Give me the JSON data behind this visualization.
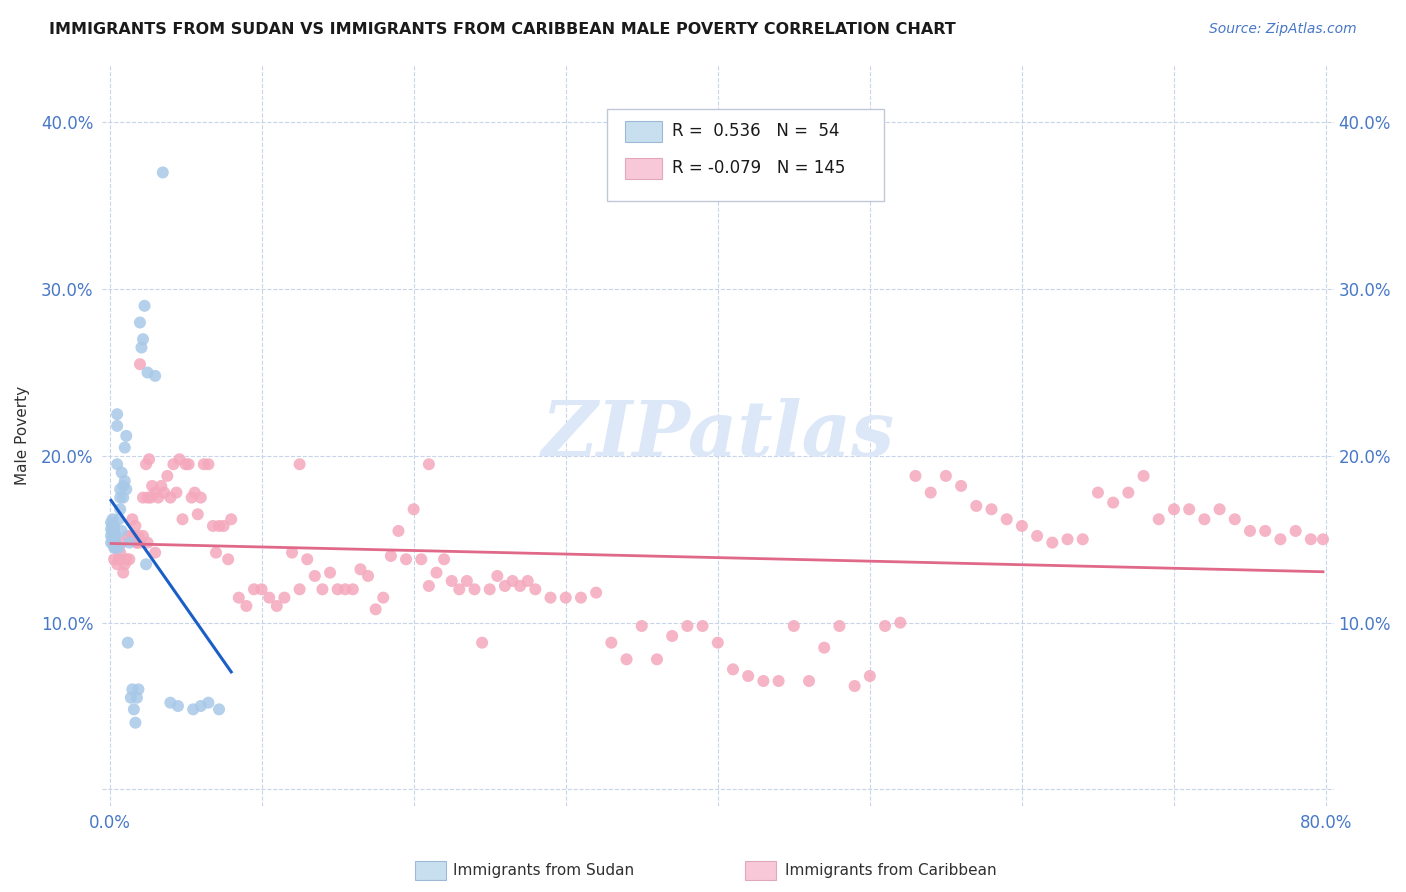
{
  "title": "IMMIGRANTS FROM SUDAN VS IMMIGRANTS FROM CARIBBEAN MALE POVERTY CORRELATION CHART",
  "source": "Source: ZipAtlas.com",
  "ylabel": "Male Poverty",
  "xlim": [
    -0.005,
    0.805
  ],
  "ylim": [
    -0.01,
    0.435
  ],
  "r_sudan": 0.536,
  "n_sudan": 54,
  "r_caribbean": -0.079,
  "n_caribbean": 145,
  "sudan_color": "#a8c8e8",
  "caribbean_color": "#f4a8bc",
  "sudan_line_color": "#1a5fc8",
  "caribbean_line_color": "#e06888",
  "legend_box_sudan": "#c8dff0",
  "legend_box_caribbean": "#f8c8d8",
  "watermark_color": "#dce8f8",
  "sudan_x": [
    0.001,
    0.001,
    0.001,
    0.001,
    0.002,
    0.002,
    0.002,
    0.002,
    0.002,
    0.003,
    0.003,
    0.003,
    0.003,
    0.004,
    0.004,
    0.004,
    0.005,
    0.005,
    0.005,
    0.006,
    0.006,
    0.007,
    0.007,
    0.007,
    0.008,
    0.008,
    0.009,
    0.009,
    0.01,
    0.01,
    0.011,
    0.011,
    0.012,
    0.013,
    0.014,
    0.015,
    0.016,
    0.017,
    0.018,
    0.019,
    0.02,
    0.021,
    0.022,
    0.023,
    0.024,
    0.025,
    0.03,
    0.035,
    0.04,
    0.045,
    0.055,
    0.06,
    0.065,
    0.072
  ],
  "sudan_y": [
    0.148,
    0.152,
    0.156,
    0.16,
    0.148,
    0.152,
    0.155,
    0.158,
    0.162,
    0.145,
    0.15,
    0.155,
    0.158,
    0.145,
    0.148,
    0.152,
    0.218,
    0.225,
    0.195,
    0.145,
    0.162,
    0.168,
    0.175,
    0.18,
    0.155,
    0.19,
    0.175,
    0.182,
    0.185,
    0.205,
    0.18,
    0.212,
    0.088,
    0.148,
    0.055,
    0.06,
    0.048,
    0.04,
    0.055,
    0.06,
    0.28,
    0.265,
    0.27,
    0.29,
    0.135,
    0.25,
    0.248,
    0.37,
    0.052,
    0.05,
    0.048,
    0.05,
    0.052,
    0.048
  ],
  "carib_x": [
    0.003,
    0.005,
    0.006,
    0.007,
    0.008,
    0.009,
    0.01,
    0.011,
    0.012,
    0.013,
    0.015,
    0.016,
    0.017,
    0.018,
    0.019,
    0.02,
    0.022,
    0.024,
    0.025,
    0.026,
    0.027,
    0.028,
    0.03,
    0.032,
    0.034,
    0.036,
    0.038,
    0.04,
    0.042,
    0.044,
    0.046,
    0.048,
    0.05,
    0.052,
    0.054,
    0.056,
    0.058,
    0.06,
    0.062,
    0.065,
    0.068,
    0.07,
    0.072,
    0.075,
    0.078,
    0.08,
    0.085,
    0.09,
    0.095,
    0.1,
    0.105,
    0.11,
    0.115,
    0.12,
    0.125,
    0.13,
    0.135,
    0.14,
    0.145,
    0.15,
    0.155,
    0.16,
    0.165,
    0.17,
    0.175,
    0.18,
    0.185,
    0.19,
    0.195,
    0.2,
    0.205,
    0.21,
    0.215,
    0.22,
    0.225,
    0.23,
    0.235,
    0.24,
    0.245,
    0.25,
    0.255,
    0.26,
    0.265,
    0.27,
    0.275,
    0.28,
    0.29,
    0.3,
    0.31,
    0.32,
    0.33,
    0.34,
    0.35,
    0.36,
    0.37,
    0.38,
    0.39,
    0.4,
    0.41,
    0.42,
    0.43,
    0.44,
    0.45,
    0.46,
    0.47,
    0.48,
    0.49,
    0.5,
    0.51,
    0.52,
    0.53,
    0.54,
    0.55,
    0.56,
    0.57,
    0.58,
    0.59,
    0.6,
    0.61,
    0.62,
    0.63,
    0.64,
    0.65,
    0.66,
    0.67,
    0.68,
    0.69,
    0.7,
    0.71,
    0.72,
    0.73,
    0.74,
    0.75,
    0.76,
    0.77,
    0.78,
    0.79,
    0.798,
    0.125,
    0.21,
    0.015,
    0.018,
    0.022,
    0.02,
    0.025,
    0.03
  ],
  "carib_y": [
    0.138,
    0.135,
    0.138,
    0.142,
    0.148,
    0.13,
    0.135,
    0.138,
    0.152,
    0.138,
    0.162,
    0.152,
    0.158,
    0.148,
    0.152,
    0.255,
    0.175,
    0.195,
    0.175,
    0.198,
    0.175,
    0.182,
    0.178,
    0.175,
    0.182,
    0.178,
    0.188,
    0.175,
    0.195,
    0.178,
    0.198,
    0.162,
    0.195,
    0.195,
    0.175,
    0.178,
    0.165,
    0.175,
    0.195,
    0.195,
    0.158,
    0.142,
    0.158,
    0.158,
    0.138,
    0.162,
    0.115,
    0.11,
    0.12,
    0.12,
    0.115,
    0.11,
    0.115,
    0.142,
    0.12,
    0.138,
    0.128,
    0.12,
    0.13,
    0.12,
    0.12,
    0.12,
    0.132,
    0.128,
    0.108,
    0.115,
    0.14,
    0.155,
    0.138,
    0.168,
    0.138,
    0.122,
    0.13,
    0.138,
    0.125,
    0.12,
    0.125,
    0.12,
    0.088,
    0.12,
    0.128,
    0.122,
    0.125,
    0.122,
    0.125,
    0.12,
    0.115,
    0.115,
    0.115,
    0.118,
    0.088,
    0.078,
    0.098,
    0.078,
    0.092,
    0.098,
    0.098,
    0.088,
    0.072,
    0.068,
    0.065,
    0.065,
    0.098,
    0.065,
    0.085,
    0.098,
    0.062,
    0.068,
    0.098,
    0.1,
    0.188,
    0.178,
    0.188,
    0.182,
    0.17,
    0.168,
    0.162,
    0.158,
    0.152,
    0.148,
    0.15,
    0.15,
    0.178,
    0.172,
    0.178,
    0.188,
    0.162,
    0.168,
    0.168,
    0.162,
    0.168,
    0.162,
    0.155,
    0.155,
    0.15,
    0.155,
    0.15,
    0.15,
    0.195,
    0.195,
    0.152,
    0.148,
    0.152,
    0.148,
    0.148,
    0.142
  ]
}
